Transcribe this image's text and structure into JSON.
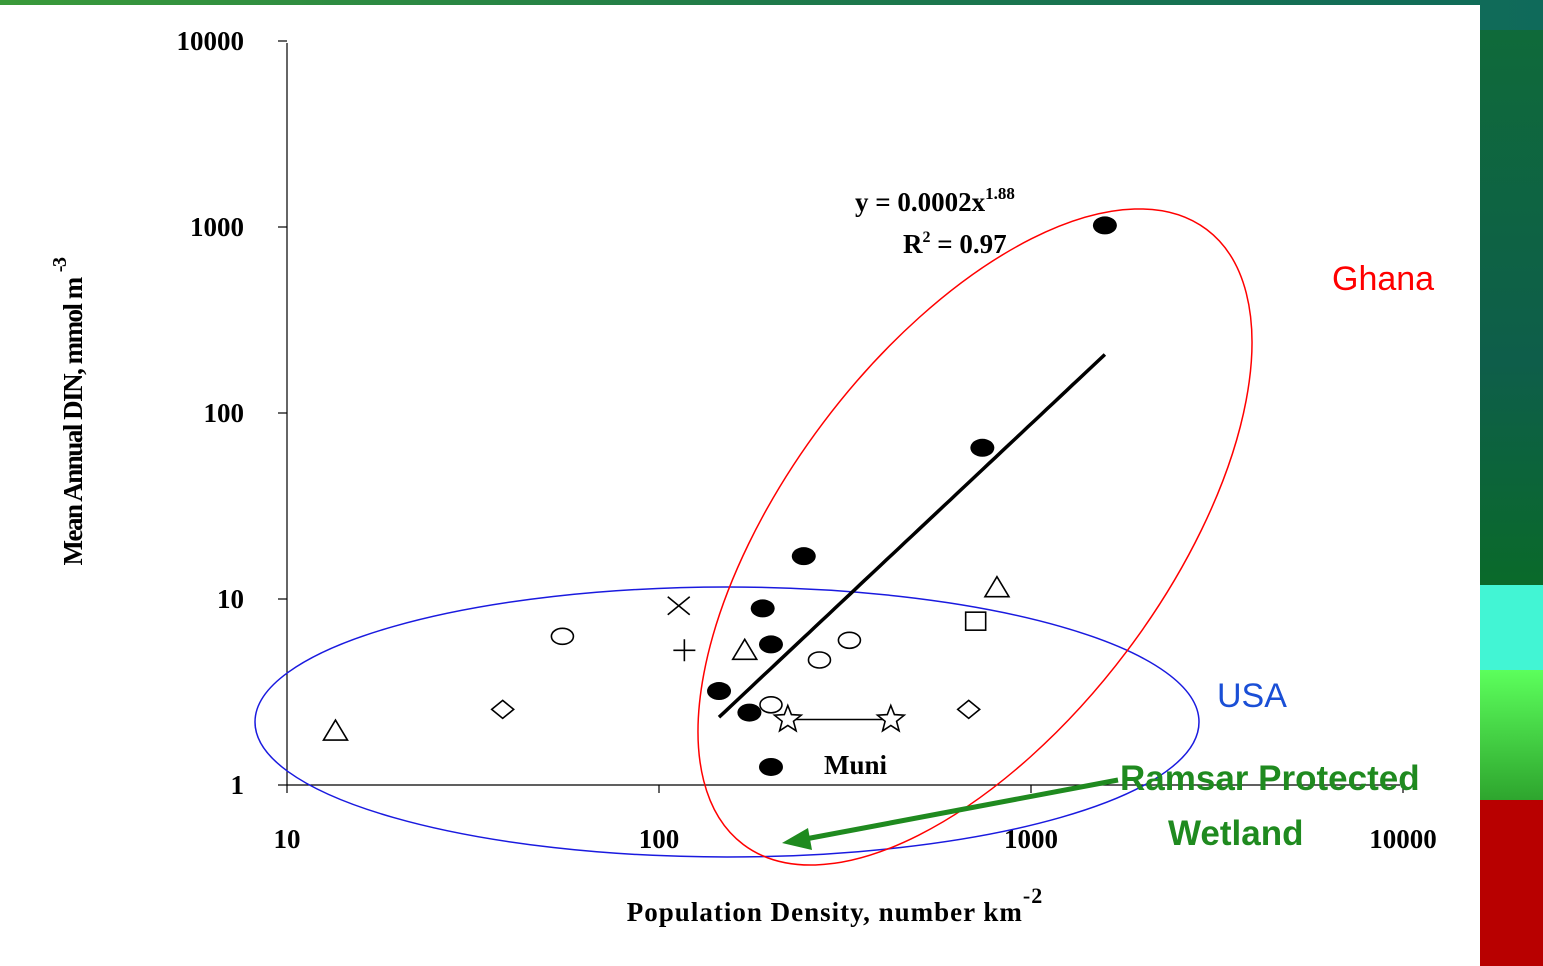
{
  "chart_data": {
    "type": "scatter",
    "xlabel": "Population Density,  number km",
    "xlabel_sup": "-2",
    "ylabel": "Mean Annual DIN, mmol m",
    "ylabel_sup": "-3",
    "x_scale": "log",
    "y_scale": "log",
    "xlim": [
      10,
      10000
    ],
    "ylim": [
      1,
      10000
    ],
    "x_ticks": [
      "10",
      "100",
      "1000",
      "10000"
    ],
    "y_ticks": [
      "1",
      "10",
      "100",
      "1000",
      "10000"
    ],
    "grid": false,
    "series": [
      {
        "name": "Ghana",
        "marker": "filled-circle",
        "points": [
          [
            145,
            3.2
          ],
          [
            175,
            2.45
          ],
          [
            200,
            1.25
          ],
          [
            190,
            8.9
          ],
          [
            200,
            5.7
          ],
          [
            245,
            17
          ],
          [
            740,
            65
          ],
          [
            1580,
            1020
          ]
        ]
      },
      {
        "name": "USA",
        "marker": "open-triangle",
        "points": [
          [
            13.5,
            1.95
          ],
          [
            170,
            5.3
          ],
          [
            810,
            11.5
          ]
        ]
      },
      {
        "name": "USA",
        "marker": "open-diamond",
        "points": [
          [
            38,
            2.55
          ],
          [
            680,
            2.55
          ]
        ]
      },
      {
        "name": "USA",
        "marker": "open-ellipse",
        "points": [
          [
            55,
            6.3
          ],
          [
            200,
            2.7
          ],
          [
            270,
            4.7
          ],
          [
            325,
            6.0
          ]
        ]
      },
      {
        "name": "USA",
        "marker": "cross-x",
        "points": [
          [
            113,
            9.2
          ]
        ]
      },
      {
        "name": "USA",
        "marker": "plus",
        "points": [
          [
            117,
            5.3
          ]
        ]
      },
      {
        "name": "USA",
        "marker": "open-square",
        "points": [
          [
            710,
            7.6
          ]
        ]
      },
      {
        "name": "USA",
        "marker": "open-star",
        "points": [
          [
            222,
            2.25
          ],
          [
            420,
            2.25
          ]
        ],
        "connected": true
      }
    ],
    "fit": {
      "equation": "y = 0.0002x",
      "exponent": "1.88",
      "r2_prefix": "R",
      "r2_sup": "2",
      "r2_suffix": " = 0.97",
      "a": 0.0002,
      "b": 1.88,
      "x_from": 145,
      "x_to": 1580
    },
    "annotations": [
      {
        "text": "Ghana",
        "color": "#ff0000"
      },
      {
        "text": "USA",
        "color": "#1a4fd6"
      },
      {
        "text": "Muni",
        "color": "#000000"
      },
      {
        "text": "Ramsar Protected",
        "color": "#1f8a1f"
      },
      {
        "text": "Wetland",
        "color": "#1f8a1f"
      }
    ],
    "colors": {
      "fit_line": "#000000",
      "ghana_ellipse": "#ff0000",
      "usa_ellipse": "#1a1adf",
      "arrow": "#1f8a1f"
    }
  }
}
